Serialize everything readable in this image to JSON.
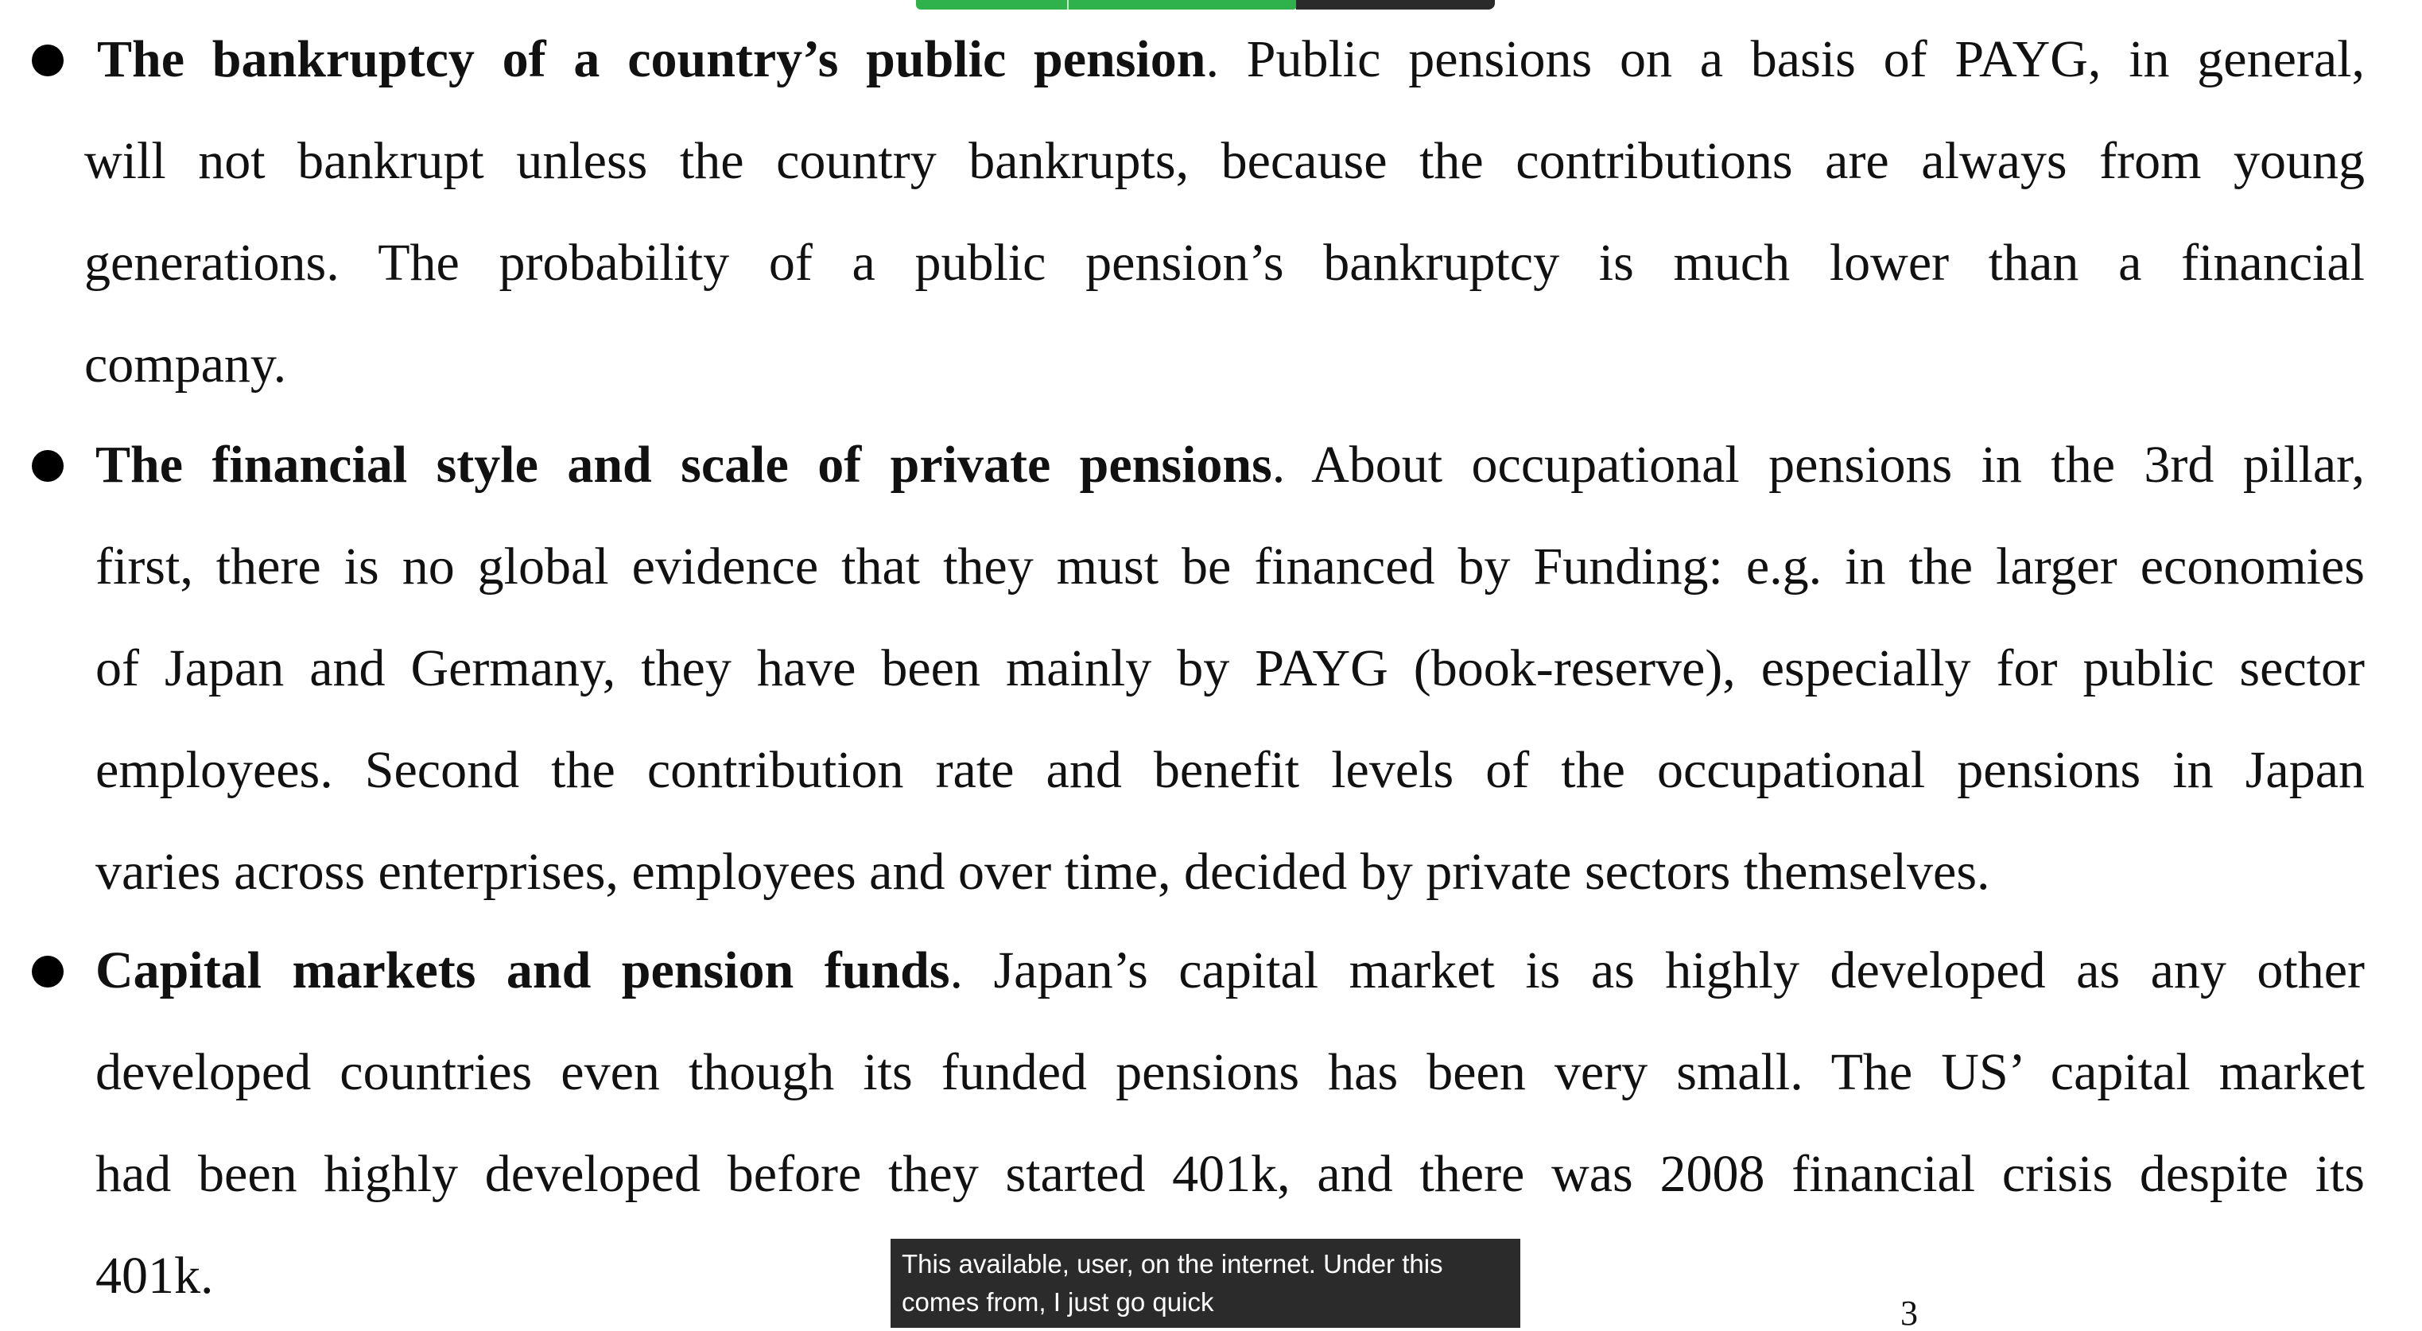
{
  "doc": {
    "b1": {
      "bold": "The bankruptcy of a country’s public pension",
      "l1_rest": ". Public pensions on a basis of PAYG, in general,",
      "l2": "will not bankrupt unless the country bankrupts, because the contributions are always from young",
      "l3": "generations. The probability of a public pension’s bankruptcy is much lower than a financial",
      "l4": "company."
    },
    "b2": {
      "bold": "The financial style and scale of private pensions",
      "l1_rest": ". About occupational pensions in the 3rd pillar,",
      "l2": "first, there is no global evidence that they must be financed by Funding:  e.g. in the larger economies",
      "l3": "of Japan and Germany, they have been mainly by PAYG (book-reserve), especially for public sector",
      "l4": "employees. Second the contribution rate and benefit levels of the occupational pensions in Japan",
      "l5": "varies across enterprises, employees and over time, decided by private sectors themselves."
    },
    "b3": {
      "bold": "Capital markets and pension funds",
      "l1_rest": ". Japan’s capital market is as highly developed as any other",
      "l2": "developed countries even though its funded pensions has been very small. The US’ capital market",
      "l3": "had been highly developed before they started 401k, and there was 2008 financial crisis despite its",
      "l4": "401k."
    }
  },
  "caption": {
    "line1": "This available, user, on the internet. Under this",
    "line2": "comes from, I just go quick"
  },
  "page_number": "3",
  "colors": {
    "toolbar_green": "#2fb24c",
    "toolbar_dark": "#2a2a2a",
    "caption_bg": "#2b2b2b"
  }
}
